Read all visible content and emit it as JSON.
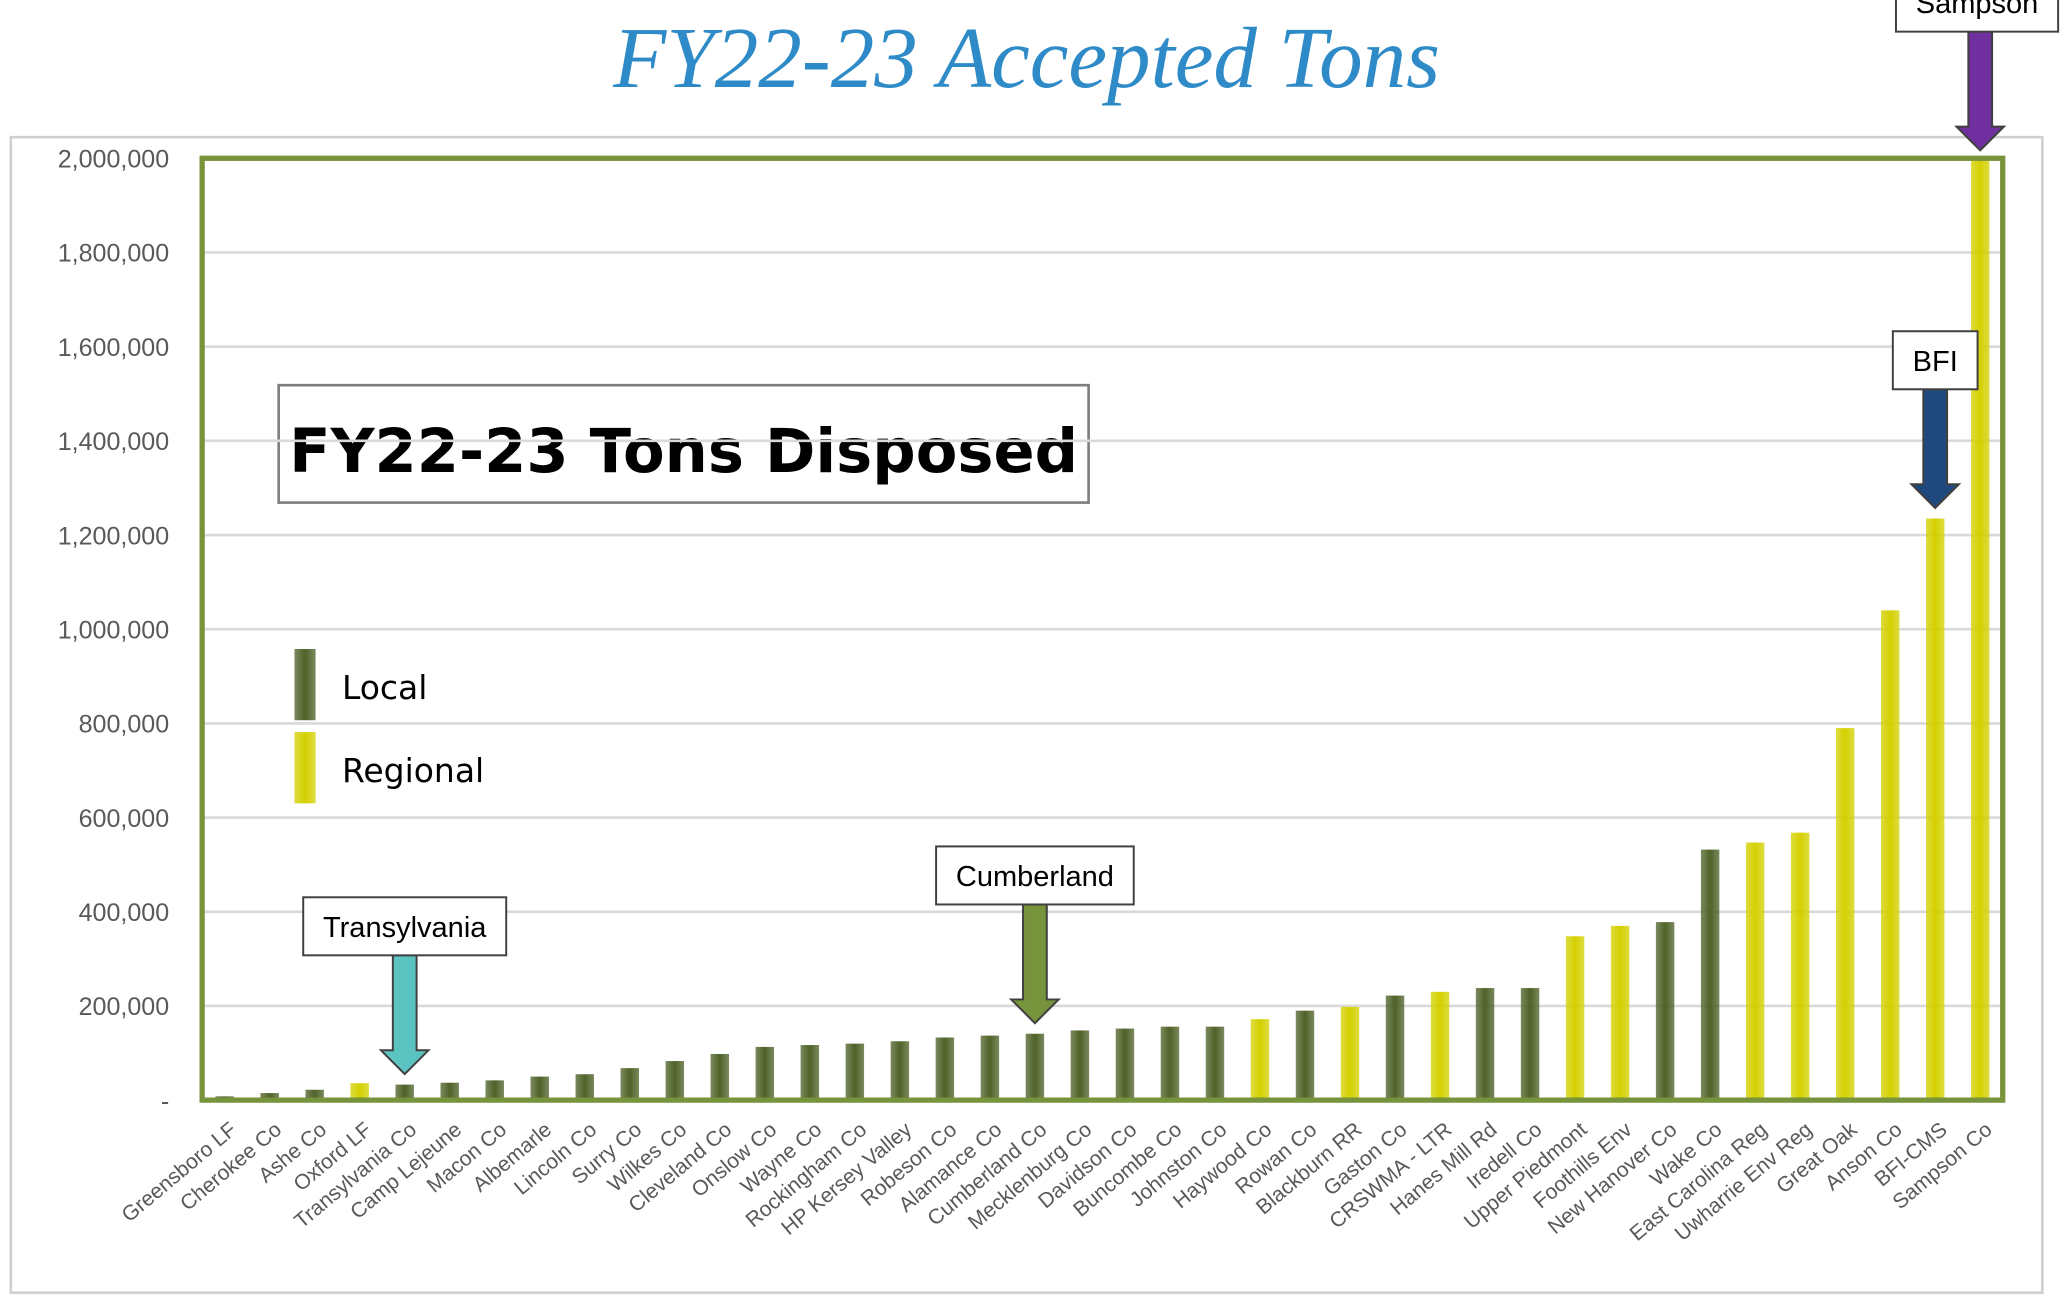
{
  "chart_data": {
    "type": "bar",
    "title": "FY22-23 Accepted Tons",
    "subtitle": "FY22-23 Tons Disposed",
    "categories": [
      "Greensboro LF",
      "Cherokee Co",
      "Ashe Co",
      "Oxford LF",
      "Transylvania Co",
      "Camp Lejeune",
      "Macon Co",
      "Albemarle",
      "Lincoln Co",
      "Surry Co",
      "Wilkes Co",
      "Cleveland Co",
      "Onslow Co",
      "Wayne Co",
      "Rockingham Co",
      "HP Kersey Valley",
      "Robeson Co",
      "Alamance Co",
      "Cumberland Co",
      "Mecklenburg Co",
      "Davidson Co",
      "Buncombe Co",
      "Johnston Co",
      "Haywood Co",
      "Rowan Co",
      "Blackburn RR",
      "Gaston Co",
      "CRSWMA - LTR",
      "Hanes Mill Rd",
      "Iredell Co",
      "Upper Piedmont",
      "Foothills Env",
      "New Hanover Co",
      "Wake Co",
      "East Carolina Reg",
      "Uwharrie Env Reg",
      "Great Oak",
      "Anson Co",
      "BFI-CMS",
      "Sampson Co"
    ],
    "series": [
      {
        "name": "Local",
        "color": "#4f6228",
        "values": [
          8000,
          15000,
          22000,
          null,
          33000,
          37000,
          42000,
          50000,
          55000,
          68000,
          83000,
          98000,
          113000,
          117000,
          120000,
          125000,
          133000,
          137000,
          141000,
          148000,
          152000,
          156000,
          156000,
          null,
          190000,
          null,
          222000,
          null,
          238000,
          238000,
          null,
          null,
          378000,
          532000,
          null,
          null,
          null,
          null,
          null,
          null
        ]
      },
      {
        "name": "Regional",
        "color": "#d4d000",
        "values": [
          null,
          null,
          null,
          36000,
          null,
          null,
          null,
          null,
          null,
          null,
          null,
          null,
          null,
          null,
          null,
          null,
          null,
          null,
          null,
          null,
          null,
          null,
          null,
          172000,
          null,
          198000,
          null,
          230000,
          null,
          null,
          348000,
          370000,
          null,
          null,
          547000,
          568000,
          790000,
          1040000,
          1235000,
          2000000
        ]
      }
    ],
    "ylim": [
      0,
      2000000
    ],
    "yticks": [
      {
        "value": 0,
        "label": "-"
      },
      {
        "value": 200000,
        "label": "200,000"
      },
      {
        "value": 400000,
        "label": "400,000"
      },
      {
        "value": 600000,
        "label": "600,000"
      },
      {
        "value": 800000,
        "label": "800,000"
      },
      {
        "value": 1000000,
        "label": "1,000,000"
      },
      {
        "value": 1200000,
        "label": "1,200,000"
      },
      {
        "value": 1400000,
        "label": "1,400,000"
      },
      {
        "value": 1600000,
        "label": "1,600,000"
      },
      {
        "value": 1800000,
        "label": "1,800,000"
      },
      {
        "value": 2000000,
        "label": "2,000,000"
      }
    ],
    "grid": true,
    "annotations": [
      {
        "text": "Transylvania",
        "category": "Transylvania Co",
        "color": "#5bc4c0"
      },
      {
        "text": "Cumberland",
        "category": "Cumberland Co",
        "color": "#77933c"
      },
      {
        "text": "BFI",
        "category": "BFI-CMS",
        "color": "#1f497d"
      },
      {
        "text": "Sampson",
        "category": "Sampson Co",
        "color": "#7030a0"
      }
    ]
  }
}
